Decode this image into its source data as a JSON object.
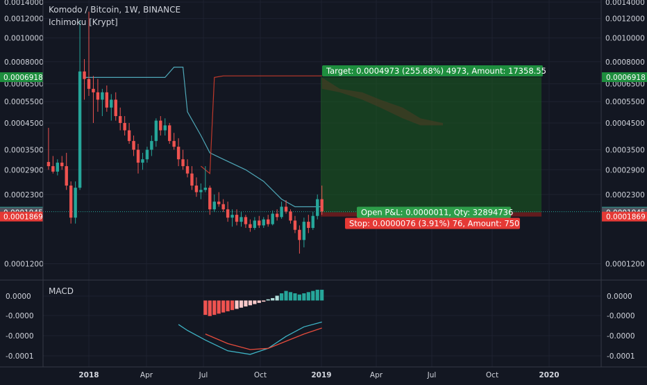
{
  "header": {
    "symbol_line": "Komodo / Bitcoin, 1W, BINANCE",
    "indicator": "Ichimoku [Krypt]"
  },
  "macd_label": "MACD",
  "colors": {
    "background": "#131722",
    "grid": "#1e2230",
    "bull": "#26a69a",
    "bear": "#ef5350",
    "target_zone": "#1b5e20",
    "stop_zone": "#7f1d1d",
    "price_line": "#26a69a",
    "kijun": "#4fa8b8",
    "tenkan": "#c0392b"
  },
  "price_axis": {
    "ticks": [
      "0.0014000",
      "0.0012000",
      "0.0010000",
      "0.0008000",
      "0.0006500",
      "0.0005500",
      "0.0004500",
      "0.0003500",
      "0.0002900",
      "0.0002300",
      "0.0001200"
    ],
    "badges": [
      {
        "label": "0.0006918",
        "kind": "target"
      },
      {
        "label": "0.0001956",
        "kind": "current"
      },
      {
        "label": "0.0001945",
        "kind": "neutral"
      },
      {
        "label": "0.0001869",
        "kind": "stop"
      }
    ]
  },
  "macd_axis": {
    "ticks": [
      "0.0000",
      "-0.0000",
      "-0.0000",
      "-0.0001"
    ]
  },
  "time_axis": {
    "ticks": [
      "2018",
      "Apr",
      "Jul",
      "Oct",
      "2019",
      "Apr",
      "Jul",
      "Oct",
      "2020"
    ]
  },
  "position": {
    "target_label": "Target: 0.0004973 (255.68%) 4973, Amount: 17358.55",
    "open_label": "Open P&L: 0.0000011, Qty: 32894736",
    "stop_label": "Stop: 0.0000076 (3.91%) 76, Amount: 750",
    "entry": 0.0001945,
    "target": 0.0006918,
    "stop": 0.0001869
  },
  "chart_data": {
    "type": "candlestick",
    "title": "Komodo / Bitcoin, 1W, BINANCE",
    "y_scale": "log",
    "ylim": [
      0.000105,
      0.0014
    ],
    "candles": [
      {
        "x": "2017-10-30",
        "o": 0.000312,
        "h": 0.00043,
        "l": 0.00029,
        "c": 0.0003
      },
      {
        "x": "2017-11-06",
        "o": 0.0003,
        "h": 0.00033,
        "l": 0.00028,
        "c": 0.000285
      },
      {
        "x": "2017-11-13",
        "o": 0.000285,
        "h": 0.00032,
        "l": 0.000275,
        "c": 0.00031
      },
      {
        "x": "2017-11-20",
        "o": 0.00031,
        "h": 0.00033,
        "l": 0.00029,
        "c": 0.0003
      },
      {
        "x": "2017-11-27",
        "o": 0.0003,
        "h": 0.00034,
        "l": 0.00024,
        "c": 0.00025
      },
      {
        "x": "2017-12-04",
        "o": 0.00025,
        "h": 0.00026,
        "l": 0.000175,
        "c": 0.000185
      },
      {
        "x": "2017-12-11",
        "o": 0.000185,
        "h": 0.00026,
        "l": 0.000175,
        "c": 0.000245
      },
      {
        "x": "2017-12-18",
        "o": 0.000245,
        "h": 0.00118,
        "l": 0.00024,
        "c": 0.00073
      },
      {
        "x": "2017-12-25",
        "o": 0.00073,
        "h": 0.00082,
        "l": 0.00056,
        "c": 0.00068
      },
      {
        "x": "2018-01-01",
        "o": 0.00068,
        "h": 0.00128,
        "l": 0.00058,
        "c": 0.00062
      },
      {
        "x": "2018-01-08",
        "o": 0.00062,
        "h": 0.0007,
        "l": 0.00045,
        "c": 0.0006
      },
      {
        "x": "2018-01-15",
        "o": 0.0006,
        "h": 0.00068,
        "l": 0.0005,
        "c": 0.00056
      },
      {
        "x": "2018-01-22",
        "o": 0.00056,
        "h": 0.00062,
        "l": 0.00048,
        "c": 0.0006
      },
      {
        "x": "2018-01-29",
        "o": 0.0006,
        "h": 0.00064,
        "l": 0.0005,
        "c": 0.00052
      },
      {
        "x": "2018-02-05",
        "o": 0.00052,
        "h": 0.00059,
        "l": 0.00046,
        "c": 0.00056
      },
      {
        "x": "2018-02-12",
        "o": 0.00056,
        "h": 0.0006,
        "l": 0.00046,
        "c": 0.00048
      },
      {
        "x": "2018-02-19",
        "o": 0.00048,
        "h": 0.00052,
        "l": 0.00042,
        "c": 0.00045
      },
      {
        "x": "2018-02-26",
        "o": 0.00045,
        "h": 0.00048,
        "l": 0.0004,
        "c": 0.00042
      },
      {
        "x": "2018-03-05",
        "o": 0.00042,
        "h": 0.00045,
        "l": 0.00037,
        "c": 0.00038
      },
      {
        "x": "2018-03-12",
        "o": 0.00038,
        "h": 0.0004,
        "l": 0.00033,
        "c": 0.00035
      },
      {
        "x": "2018-03-19",
        "o": 0.00035,
        "h": 0.00037,
        "l": 0.00028,
        "c": 0.00031
      },
      {
        "x": "2018-03-26",
        "o": 0.00031,
        "h": 0.00034,
        "l": 0.00029,
        "c": 0.00032
      },
      {
        "x": "2018-04-02",
        "o": 0.00032,
        "h": 0.00036,
        "l": 0.00031,
        "c": 0.00035
      },
      {
        "x": "2018-04-09",
        "o": 0.00035,
        "h": 0.0004,
        "l": 0.00033,
        "c": 0.00038
      },
      {
        "x": "2018-04-16",
        "o": 0.00038,
        "h": 0.00047,
        "l": 0.00036,
        "c": 0.00046
      },
      {
        "x": "2018-04-23",
        "o": 0.00046,
        "h": 0.00048,
        "l": 0.0004,
        "c": 0.00042
      },
      {
        "x": "2018-04-30",
        "o": 0.00042,
        "h": 0.00047,
        "l": 0.0004,
        "c": 0.00044
      },
      {
        "x": "2018-05-07",
        "o": 0.00044,
        "h": 0.00045,
        "l": 0.00037,
        "c": 0.00038
      },
      {
        "x": "2018-05-14",
        "o": 0.00038,
        "h": 0.00041,
        "l": 0.00035,
        "c": 0.00036
      },
      {
        "x": "2018-05-21",
        "o": 0.00036,
        "h": 0.00039,
        "l": 0.0003,
        "c": 0.00032
      },
      {
        "x": "2018-05-28",
        "o": 0.00032,
        "h": 0.00035,
        "l": 0.00029,
        "c": 0.0003
      },
      {
        "x": "2018-06-04",
        "o": 0.0003,
        "h": 0.00032,
        "l": 0.00027,
        "c": 0.00028
      },
      {
        "x": "2018-06-11",
        "o": 0.00028,
        "h": 0.0003,
        "l": 0.00024,
        "c": 0.00025
      },
      {
        "x": "2018-06-18",
        "o": 0.00025,
        "h": 0.00027,
        "l": 0.000225,
        "c": 0.000235
      },
      {
        "x": "2018-06-25",
        "o": 0.000235,
        "h": 0.000255,
        "l": 0.00022,
        "c": 0.00024
      },
      {
        "x": "2018-07-02",
        "o": 0.00024,
        "h": 0.0003,
        "l": 0.000235,
        "c": 0.000245
      },
      {
        "x": "2018-07-09",
        "o": 0.000245,
        "h": 0.00025,
        "l": 0.00019,
        "c": 0.0002
      },
      {
        "x": "2018-07-16",
        "o": 0.0002,
        "h": 0.00023,
        "l": 0.000195,
        "c": 0.000215
      },
      {
        "x": "2018-07-23",
        "o": 0.000215,
        "h": 0.000235,
        "l": 0.000205,
        "c": 0.00021
      },
      {
        "x": "2018-07-30",
        "o": 0.00021,
        "h": 0.00022,
        "l": 0.000195,
        "c": 0.0002
      },
      {
        "x": "2018-08-06",
        "o": 0.0002,
        "h": 0.000215,
        "l": 0.000178,
        "c": 0.000185
      },
      {
        "x": "2018-08-13",
        "o": 0.000185,
        "h": 0.0002,
        "l": 0.00017,
        "c": 0.00019
      },
      {
        "x": "2018-08-20",
        "o": 0.00019,
        "h": 0.0002,
        "l": 0.000172,
        "c": 0.000178
      },
      {
        "x": "2018-08-27",
        "o": 0.000178,
        "h": 0.000195,
        "l": 0.00017,
        "c": 0.000186
      },
      {
        "x": "2018-09-03",
        "o": 0.000186,
        "h": 0.00019,
        "l": 0.000168,
        "c": 0.000174
      },
      {
        "x": "2018-09-10",
        "o": 0.000174,
        "h": 0.000182,
        "l": 0.000162,
        "c": 0.000168
      },
      {
        "x": "2018-09-17",
        "o": 0.000168,
        "h": 0.000186,
        "l": 0.000165,
        "c": 0.00018
      },
      {
        "x": "2018-09-24",
        "o": 0.00018,
        "h": 0.000188,
        "l": 0.000168,
        "c": 0.000172
      },
      {
        "x": "2018-10-01",
        "o": 0.000172,
        "h": 0.000186,
        "l": 0.000168,
        "c": 0.000182
      },
      {
        "x": "2018-10-08",
        "o": 0.000182,
        "h": 0.00019,
        "l": 0.00017,
        "c": 0.000174
      },
      {
        "x": "2018-10-15",
        "o": 0.000174,
        "h": 0.000198,
        "l": 0.000172,
        "c": 0.000192
      },
      {
        "x": "2018-10-22",
        "o": 0.000192,
        "h": 0.0002,
        "l": 0.00018,
        "c": 0.000186
      },
      {
        "x": "2018-10-29",
        "o": 0.000186,
        "h": 0.000215,
        "l": 0.000183,
        "c": 0.000205
      },
      {
        "x": "2018-11-05",
        "o": 0.000205,
        "h": 0.000218,
        "l": 0.000192,
        "c": 0.000196
      },
      {
        "x": "2018-11-12",
        "o": 0.000196,
        "h": 0.0002,
        "l": 0.000175,
        "c": 0.00018
      },
      {
        "x": "2018-11-19",
        "o": 0.00018,
        "h": 0.000188,
        "l": 0.00016,
        "c": 0.000165
      },
      {
        "x": "2018-11-26",
        "o": 0.000165,
        "h": 0.000172,
        "l": 0.000132,
        "c": 0.00015
      },
      {
        "x": "2018-12-03",
        "o": 0.00015,
        "h": 0.000185,
        "l": 0.00014,
        "c": 0.000178
      },
      {
        "x": "2018-12-10",
        "o": 0.000178,
        "h": 0.00019,
        "l": 0.00016,
        "c": 0.000168
      },
      {
        "x": "2018-12-17",
        "o": 0.000168,
        "h": 0.000195,
        "l": 0.000165,
        "c": 0.000188
      },
      {
        "x": "2018-12-24",
        "o": 0.000188,
        "h": 0.00023,
        "l": 0.000182,
        "c": 0.00022
      },
      {
        "x": "2018-12-31",
        "o": 0.00022,
        "h": 0.00025,
        "l": 0.00019,
        "c": 0.000196
      }
    ],
    "kijun": [
      [
        "2017-12-25",
        0.00069
      ],
      [
        "2018-04-30",
        0.00069
      ],
      [
        "2018-05-14",
        0.00076
      ],
      [
        "2018-05-28",
        0.00076
      ],
      [
        "2018-06-04",
        0.0005
      ],
      [
        "2018-06-25",
        0.0004
      ],
      [
        "2018-07-09",
        0.00034
      ],
      [
        "2018-07-30",
        0.00032
      ],
      [
        "2018-09-03",
        0.00029
      ],
      [
        "2018-10-01",
        0.00026
      ],
      [
        "2018-10-29",
        0.00022
      ],
      [
        "2018-11-19",
        0.000205
      ],
      [
        "2018-12-31",
        0.000205
      ]
    ],
    "tenkan": [
      [
        "2018-06-25",
        0.0003
      ],
      [
        "2018-07-09",
        0.00028
      ],
      [
        "2018-07-16",
        0.00069
      ],
      [
        "2018-07-30",
        0.0007
      ],
      [
        "2018-12-31",
        0.0007
      ]
    ],
    "cloud": [
      [
        "2018-12-31",
        0.00069,
        0.00062
      ],
      [
        "2019-01-28",
        0.00062,
        0.0006
      ],
      [
        "2019-03-04",
        0.0006,
        0.00056
      ],
      [
        "2019-04-01",
        0.00056,
        0.00052
      ],
      [
        "2019-05-06",
        0.00052,
        0.00047
      ],
      [
        "2019-06-03",
        0.00047,
        0.00044
      ],
      [
        "2019-07-08",
        0.00045,
        0.00044
      ]
    ],
    "macd": {
      "histogram": [
        [
          "2018-07-02",
          -0.00012
        ],
        [
          "2018-07-09",
          -0.00013
        ],
        [
          "2018-07-16",
          -0.00012
        ],
        [
          "2018-07-23",
          -0.00011
        ],
        [
          "2018-07-30",
          -0.0001
        ],
        [
          "2018-08-06",
          -9e-05
        ],
        [
          "2018-08-13",
          -8e-05
        ],
        [
          "2018-08-20",
          -7e-05
        ],
        [
          "2018-08-27",
          -6e-05
        ],
        [
          "2018-09-03",
          -5e-05
        ],
        [
          "2018-09-10",
          -4e-05
        ],
        [
          "2018-09-17",
          -3e-05
        ],
        [
          "2018-09-24",
          -2e-05
        ],
        [
          "2018-10-01",
          -1e-05
        ],
        [
          "2018-10-08",
          1e-05
        ],
        [
          "2018-10-15",
          2e-05
        ],
        [
          "2018-10-22",
          4e-05
        ],
        [
          "2018-10-29",
          6e-05
        ],
        [
          "2018-11-05",
          8e-05
        ],
        [
          "2018-11-12",
          7e-05
        ],
        [
          "2018-11-19",
          6e-05
        ],
        [
          "2018-11-26",
          5e-05
        ],
        [
          "2018-12-03",
          6e-05
        ],
        [
          "2018-12-10",
          7e-05
        ],
        [
          "2018-12-17",
          8e-05
        ],
        [
          "2018-12-24",
          9e-05
        ],
        [
          "2018-12-31",
          9e-05
        ]
      ],
      "macd_line": [
        [
          "2018-05-21",
          -0.0002
        ],
        [
          "2018-06-04",
          -0.00025
        ],
        [
          "2018-07-02",
          -0.00033
        ],
        [
          "2018-08-06",
          -0.00042
        ],
        [
          "2018-09-10",
          -0.00045
        ],
        [
          "2018-10-08",
          -0.0004
        ],
        [
          "2018-11-05",
          -0.0003
        ],
        [
          "2018-12-03",
          -0.00022
        ],
        [
          "2018-12-31",
          -0.00018
        ]
      ],
      "signal_line": [
        [
          "2018-07-02",
          -0.00028
        ],
        [
          "2018-08-06",
          -0.00036
        ],
        [
          "2018-09-10",
          -0.00041
        ],
        [
          "2018-10-08",
          -0.0004
        ],
        [
          "2018-11-05",
          -0.00034
        ],
        [
          "2018-12-03",
          -0.00028
        ],
        [
          "2018-12-31",
          -0.00023
        ]
      ]
    }
  }
}
